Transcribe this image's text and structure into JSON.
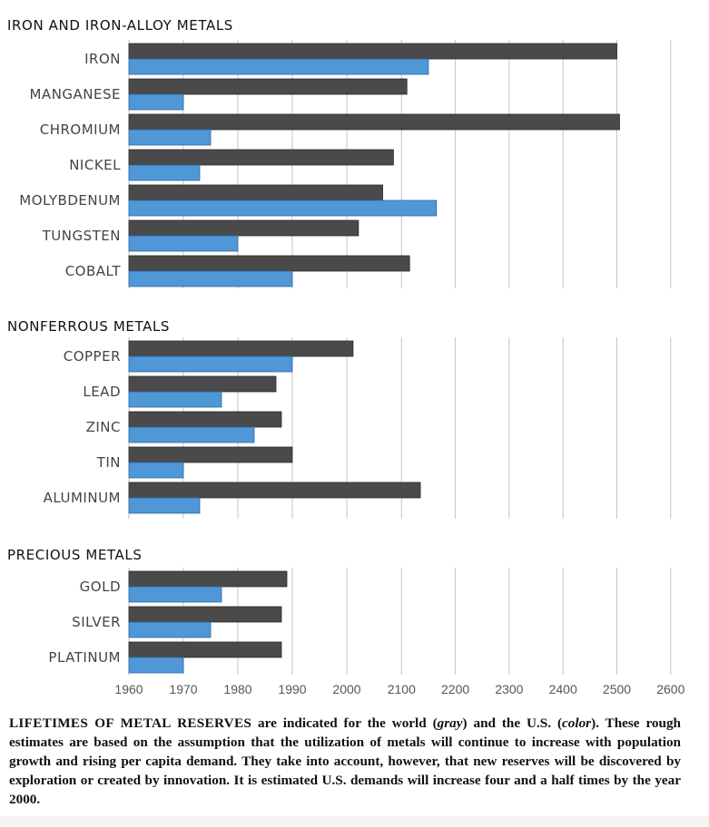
{
  "chart_data": {
    "type": "bar",
    "orientation": "horizontal",
    "series": [
      {
        "key": "world",
        "color": "#4a4a4a"
      },
      {
        "key": "us",
        "color": "#4f97d6"
      }
    ],
    "x_ticks": [
      1960,
      1970,
      1980,
      1990,
      2000,
      2100,
      2200,
      2300,
      2400,
      2500,
      2600
    ],
    "xlim": [
      1960,
      2600
    ],
    "grid": true,
    "groups": [
      {
        "title": "IRON AND IRON-ALLOY METALS",
        "items": [
          {
            "label": "IRON",
            "world": 2500,
            "us": 2150
          },
          {
            "label": "MANGANESE",
            "world": 2110,
            "us": 1970
          },
          {
            "label": "CHROMIUM",
            "world": 2505,
            "us": 1975
          },
          {
            "label": "NICKEL",
            "world": 2085,
            "us": 1973
          },
          {
            "label": "MOLYBDENUM",
            "world": 2065,
            "us": 2165
          },
          {
            "label": "TUNGSTEN",
            "world": 2020,
            "us": 1980
          },
          {
            "label": "COBALT",
            "world": 2115,
            "us": 1990
          }
        ]
      },
      {
        "title": "NONFERROUS METALS",
        "items": [
          {
            "label": "COPPER",
            "world": 2010,
            "us": 1990
          },
          {
            "label": "LEAD",
            "world": 1987,
            "us": 1977
          },
          {
            "label": "ZINC",
            "world": 1988,
            "us": 1983
          },
          {
            "label": "TIN",
            "world": 1990,
            "us": 1970
          },
          {
            "label": "ALUMINUM",
            "world": 2135,
            "us": 1973
          }
        ]
      },
      {
        "title": "PRECIOUS METALS",
        "items": [
          {
            "label": "GOLD",
            "world": 1989,
            "us": 1977
          },
          {
            "label": "SILVER",
            "world": 1988,
            "us": 1975
          },
          {
            "label": "PLATINUM",
            "world": 1988,
            "us": 1970
          }
        ]
      }
    ]
  },
  "caption": {
    "lead": "LIFETIMES OF METAL RESERVES",
    "part1": " are indicated for the world (",
    "gray_word": "gray",
    "part2": ") and the U.S. (",
    "color_word": "color",
    "part3": "). These rough estimates are based on the assumption that the utilization of metals will continue to increase with population growth and rising per capita demand. They take into account, however, that new reserves will be discovered by exploration or created by innovation. It is estimated U.S. demands will increase four and a half times by the year 2000."
  }
}
